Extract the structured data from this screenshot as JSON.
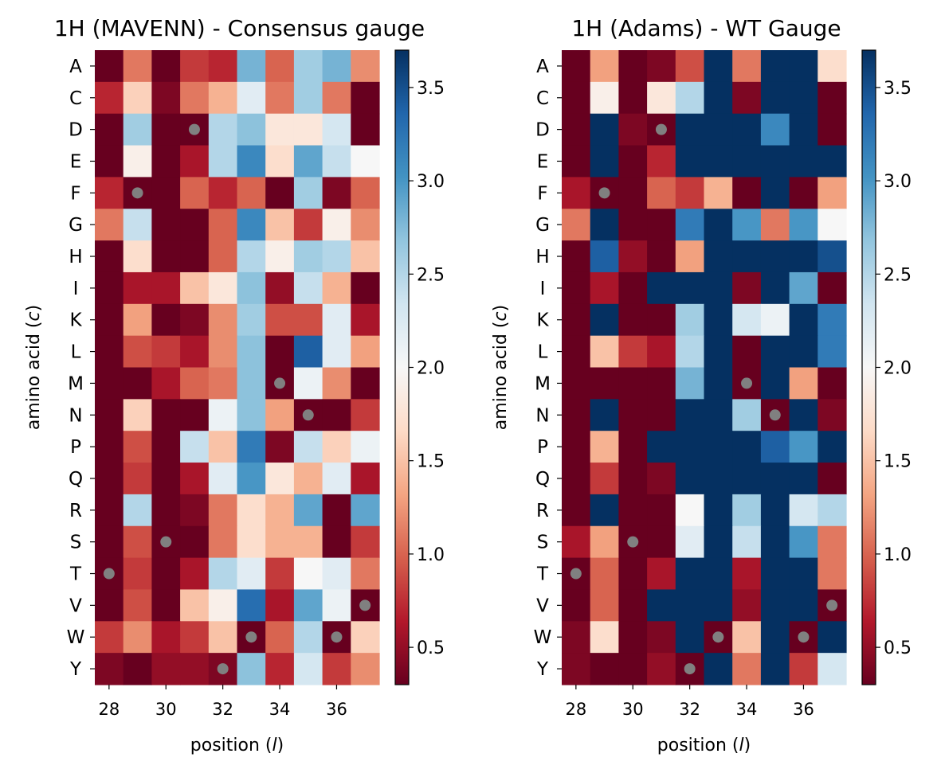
{
  "figure": {
    "aa_order": [
      "A",
      "C",
      "D",
      "E",
      "F",
      "G",
      "H",
      "I",
      "K",
      "L",
      "M",
      "N",
      "P",
      "Q",
      "R",
      "S",
      "T",
      "V",
      "W",
      "Y"
    ]
  },
  "chart_data": [
    {
      "type": "heatmap",
      "title": "1H (MAVENN) - Consensus gauge",
      "xlabel": "position (l)",
      "ylabel": "amino acid (c)",
      "x_positions": [
        28,
        29,
        30,
        31,
        32,
        33,
        34,
        35,
        36,
        37
      ],
      "x_ticks": [
        28,
        30,
        32,
        34,
        36
      ],
      "x_tick_labels": [
        "28",
        "30",
        "32",
        "34",
        "36"
      ],
      "y_labels": [
        "A",
        "C",
        "D",
        "E",
        "F",
        "G",
        "H",
        "I",
        "K",
        "L",
        "M",
        "N",
        "P",
        "Q",
        "R",
        "S",
        "T",
        "V",
        "W",
        "Y"
      ],
      "colormap": "RdBu",
      "clim": [
        0.3,
        3.7
      ],
      "colorbar_ticks": [
        0.5,
        1.0,
        1.5,
        2.0,
        2.5,
        3.0,
        3.5
      ],
      "colorbar_tick_labels": [
        "0.5",
        "1.0",
        "1.5",
        "2.0",
        "2.5",
        "3.0",
        "3.5"
      ],
      "values": [
        [
          0.3,
          1.1,
          0.3,
          0.8,
          0.7,
          2.8,
          1.0,
          2.6,
          2.8,
          1.2
        ],
        [
          0.7,
          1.6,
          0.4,
          1.1,
          1.4,
          2.2,
          1.1,
          2.6,
          1.1,
          0.3
        ],
        [
          0.3,
          2.6,
          0.3,
          0.3,
          2.5,
          2.7,
          1.8,
          1.8,
          2.3,
          0.3
        ],
        [
          0.3,
          1.9,
          0.3,
          0.6,
          2.5,
          3.1,
          1.7,
          2.9,
          2.4,
          2.0
        ],
        [
          0.7,
          0.3,
          0.3,
          1.0,
          0.7,
          1.0,
          0.3,
          2.6,
          0.4,
          1.0
        ],
        [
          1.1,
          2.4,
          0.3,
          0.3,
          1.0,
          3.1,
          1.5,
          0.8,
          1.9,
          1.2
        ],
        [
          0.3,
          1.7,
          0.3,
          0.3,
          1.0,
          2.5,
          1.9,
          2.6,
          2.5,
          1.5
        ],
        [
          0.3,
          0.6,
          0.6,
          1.5,
          1.8,
          2.7,
          0.5,
          2.4,
          1.4,
          0.3
        ],
        [
          0.3,
          1.3,
          0.3,
          0.4,
          1.2,
          2.6,
          0.9,
          0.9,
          2.2,
          0.6
        ],
        [
          0.3,
          0.9,
          0.8,
          0.6,
          1.2,
          2.7,
          0.3,
          3.4,
          2.2,
          1.3
        ],
        [
          0.3,
          0.3,
          0.6,
          1.0,
          1.1,
          2.7,
          0.3,
          2.1,
          1.2,
          0.3
        ],
        [
          0.3,
          1.6,
          0.3,
          0.3,
          2.1,
          2.7,
          1.3,
          0.3,
          0.3,
          0.8
        ],
        [
          0.3,
          0.9,
          0.3,
          2.4,
          1.5,
          3.2,
          0.4,
          2.4,
          1.6,
          2.1
        ],
        [
          0.3,
          0.8,
          0.3,
          0.6,
          2.2,
          3.0,
          1.8,
          1.4,
          2.2,
          0.6
        ],
        [
          0.3,
          2.5,
          0.3,
          0.4,
          1.1,
          1.7,
          1.4,
          2.9,
          0.3,
          2.9
        ],
        [
          0.3,
          0.9,
          0.3,
          0.3,
          1.1,
          1.7,
          1.4,
          1.4,
          0.3,
          0.8
        ],
        [
          0.3,
          0.8,
          0.3,
          0.6,
          2.5,
          2.2,
          0.8,
          2.0,
          2.2,
          1.1
        ],
        [
          0.3,
          0.9,
          0.3,
          1.5,
          1.9,
          3.3,
          0.6,
          2.9,
          2.1,
          0.3
        ],
        [
          0.8,
          1.2,
          0.6,
          0.8,
          1.5,
          0.3,
          1.0,
          2.5,
          0.3,
          1.6
        ],
        [
          0.4,
          0.3,
          0.5,
          0.5,
          0.4,
          2.7,
          0.7,
          2.3,
          0.8,
          1.2
        ]
      ],
      "wt_markers": [
        {
          "aa": "D",
          "pos": 31
        },
        {
          "aa": "F",
          "pos": 29
        },
        {
          "aa": "M",
          "pos": 34
        },
        {
          "aa": "N",
          "pos": 35
        },
        {
          "aa": "S",
          "pos": 30
        },
        {
          "aa": "T",
          "pos": 28
        },
        {
          "aa": "V",
          "pos": 37
        },
        {
          "aa": "W",
          "pos": 33
        },
        {
          "aa": "W",
          "pos": 36
        },
        {
          "aa": "Y",
          "pos": 32
        }
      ]
    },
    {
      "type": "heatmap",
      "title": "1H (Adams) - WT Gauge",
      "xlabel": "position (l)",
      "ylabel": "amino acid (c)",
      "x_positions": [
        28,
        29,
        30,
        31,
        32,
        33,
        34,
        35,
        36,
        37
      ],
      "x_ticks": [
        28,
        30,
        32,
        34,
        36
      ],
      "x_tick_labels": [
        "28",
        "30",
        "32",
        "34",
        "36"
      ],
      "y_labels": [
        "A",
        "C",
        "D",
        "E",
        "F",
        "G",
        "H",
        "I",
        "K",
        "L",
        "M",
        "N",
        "P",
        "Q",
        "R",
        "S",
        "T",
        "V",
        "W",
        "Y"
      ],
      "colormap": "RdBu",
      "clim": [
        0.3,
        3.7
      ],
      "colorbar_ticks": [
        0.5,
        1.0,
        1.5,
        2.0,
        2.5,
        3.0,
        3.5
      ],
      "colorbar_tick_labels": [
        "0.5",
        "1.0",
        "1.5",
        "2.0",
        "2.5",
        "3.0",
        "3.5"
      ],
      "values": [
        [
          0.3,
          1.3,
          0.3,
          0.4,
          0.9,
          3.7,
          1.1,
          3.7,
          3.7,
          1.7
        ],
        [
          0.3,
          1.9,
          0.3,
          1.8,
          2.5,
          3.7,
          0.4,
          3.7,
          3.7,
          0.3
        ],
        [
          0.3,
          3.7,
          0.4,
          0.3,
          3.7,
          3.7,
          3.7,
          3.1,
          3.7,
          0.3
        ],
        [
          0.3,
          3.7,
          0.3,
          0.7,
          3.7,
          3.7,
          3.7,
          3.7,
          3.7,
          3.7
        ],
        [
          0.6,
          0.3,
          0.3,
          1.0,
          0.8,
          1.4,
          0.3,
          3.7,
          0.3,
          1.3
        ],
        [
          1.1,
          3.7,
          0.3,
          0.3,
          3.2,
          3.7,
          3.0,
          1.1,
          3.0,
          2.0
        ],
        [
          0.3,
          3.4,
          0.5,
          0.3,
          1.3,
          3.7,
          3.7,
          3.7,
          3.7,
          3.5
        ],
        [
          0.3,
          0.6,
          0.3,
          3.7,
          3.7,
          3.7,
          0.4,
          3.7,
          2.9,
          0.3
        ],
        [
          0.3,
          3.7,
          0.3,
          0.3,
          2.6,
          3.7,
          2.3,
          2.1,
          3.7,
          3.2
        ],
        [
          0.3,
          1.5,
          0.8,
          0.6,
          2.5,
          3.7,
          0.3,
          3.7,
          3.7,
          3.2
        ],
        [
          0.3,
          0.3,
          0.3,
          0.3,
          2.8,
          3.7,
          0.3,
          3.7,
          1.3,
          0.3
        ],
        [
          0.3,
          3.7,
          0.3,
          0.3,
          3.7,
          3.7,
          2.6,
          0.3,
          3.7,
          0.4
        ],
        [
          0.3,
          1.4,
          0.3,
          3.7,
          3.7,
          3.7,
          3.7,
          3.4,
          3.0,
          3.7
        ],
        [
          0.3,
          0.8,
          0.3,
          0.4,
          3.7,
          3.7,
          3.7,
          3.7,
          3.7,
          0.3
        ],
        [
          0.3,
          3.7,
          0.3,
          0.3,
          2.0,
          3.7,
          2.6,
          3.7,
          2.3,
          2.5
        ],
        [
          0.6,
          1.3,
          0.3,
          0.3,
          2.2,
          3.7,
          2.4,
          3.7,
          3.0,
          1.1
        ],
        [
          0.3,
          1.0,
          0.3,
          0.6,
          3.7,
          3.7,
          0.6,
          3.7,
          3.7,
          1.1
        ],
        [
          0.3,
          1.0,
          0.3,
          3.7,
          3.7,
          3.7,
          0.5,
          3.7,
          3.7,
          0.3
        ],
        [
          0.4,
          1.7,
          0.3,
          0.4,
          3.7,
          0.3,
          1.5,
          3.7,
          0.3,
          3.7
        ],
        [
          0.4,
          0.3,
          0.3,
          0.5,
          0.3,
          3.7,
          1.1,
          3.7,
          0.8,
          2.3
        ]
      ],
      "wt_markers": [
        {
          "aa": "D",
          "pos": 31
        },
        {
          "aa": "F",
          "pos": 29
        },
        {
          "aa": "M",
          "pos": 34
        },
        {
          "aa": "N",
          "pos": 35
        },
        {
          "aa": "S",
          "pos": 30
        },
        {
          "aa": "T",
          "pos": 28
        },
        {
          "aa": "V",
          "pos": 37
        },
        {
          "aa": "W",
          "pos": 33
        },
        {
          "aa": "W",
          "pos": 36
        },
        {
          "aa": "Y",
          "pos": 32
        }
      ],
      "colors": {
        "marker": "#808080"
      }
    }
  ]
}
